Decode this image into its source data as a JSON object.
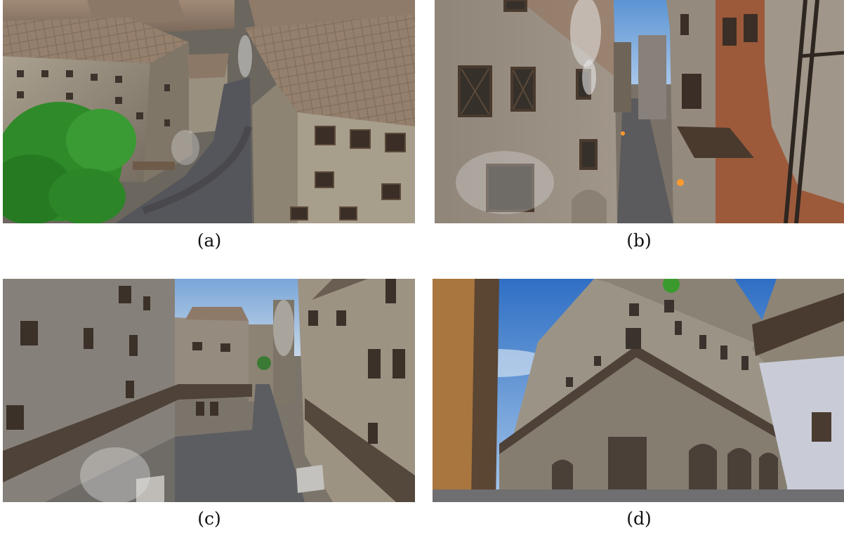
{
  "captions": {
    "a": "(a)",
    "b": "(b)",
    "c": "(c)",
    "d": "(d)"
  },
  "colors": {
    "roof": "#8f7a68",
    "wall_light": "#b8ad9c",
    "wall_dark": "#6e6558",
    "cobble": "#5a5a5e",
    "sky": "#6fa1d6",
    "tree": "#2f8a2a",
    "brick": "#8a4a2e",
    "smoke": "#e2e2e2"
  }
}
